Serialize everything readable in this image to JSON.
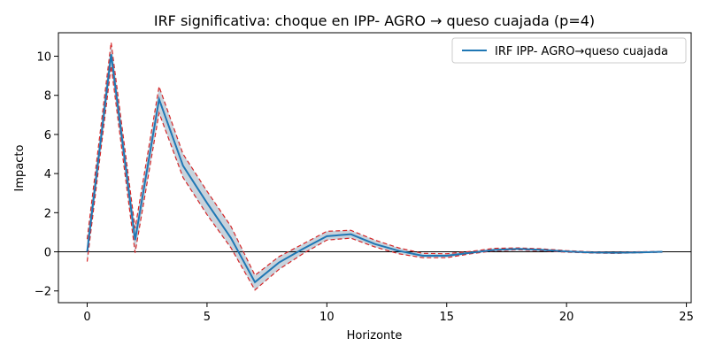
{
  "chart_data": {
    "type": "line",
    "title": "IRF significativa: choque en IPP- AGRO → queso cuajada (p=4)",
    "xlabel": "Horizonte",
    "ylabel": "Impacto",
    "xlim": [
      -1.2,
      25.2
    ],
    "ylim": [
      -2.6,
      11.2
    ],
    "xticks": [
      0,
      5,
      10,
      15,
      20,
      25
    ],
    "yticks": [
      -2,
      0,
      2,
      4,
      6,
      8,
      10
    ],
    "x": [
      0,
      1,
      2,
      3,
      4,
      5,
      6,
      7,
      8,
      9,
      10,
      11,
      12,
      13,
      14,
      15,
      16,
      17,
      18,
      19,
      20,
      21,
      22,
      23,
      24
    ],
    "series": [
      {
        "name": "IRF IPP- AGRO→queso cuajada",
        "color": "#1f77b4",
        "values": [
          0.0,
          10.1,
          0.6,
          7.8,
          4.4,
          2.5,
          0.7,
          -1.55,
          -0.55,
          0.15,
          0.8,
          0.9,
          0.4,
          0.05,
          -0.2,
          -0.2,
          -0.05,
          0.1,
          0.15,
          0.1,
          0.02,
          -0.03,
          -0.05,
          -0.03,
          0.0
        ]
      }
    ],
    "band": {
      "color_fill": "#c8d3dc",
      "color_edge": "#d62728",
      "lower": [
        -0.5,
        9.5,
        -0.05,
        7.1,
        3.8,
        1.9,
        0.2,
        -1.95,
        -0.9,
        -0.1,
        0.6,
        0.7,
        0.25,
        -0.1,
        -0.3,
        -0.3,
        -0.1,
        0.05,
        0.1,
        0.05,
        -0.02,
        -0.06,
        -0.08,
        -0.05,
        -0.02
      ],
      "upper": [
        0.65,
        10.7,
        1.2,
        8.45,
        5.0,
        3.1,
        1.3,
        -1.2,
        -0.25,
        0.4,
        1.05,
        1.1,
        0.6,
        0.2,
        -0.08,
        -0.1,
        0.02,
        0.18,
        0.2,
        0.15,
        0.06,
        0.0,
        -0.02,
        0.0,
        0.02
      ]
    },
    "zero_line": true,
    "grid": false,
    "legend": "top-right"
  }
}
